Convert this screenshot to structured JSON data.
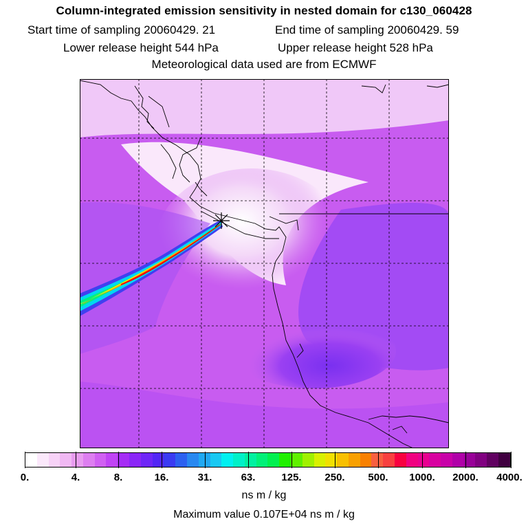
{
  "title": "Column-integrated emission sensitivity in nested domain for c130_060428",
  "start_sampling": "Start time of sampling 20060429.    21",
  "end_sampling": "End time of sampling 20060429.    59",
  "lower_release": "Lower release height  544 hPa",
  "upper_release": "Upper release height  528 hPa",
  "met_data": "Meteorological data used are from ECMWF",
  "units": "ns m / kg",
  "max_value": "Maximum value  0.107E+04 ns m / kg",
  "colorbar": {
    "tick_labels": [
      "0.",
      "4.",
      "8.",
      "16.",
      "31.",
      "63.",
      "125.",
      "250.",
      "500.",
      "1000.",
      "2000.",
      "4000."
    ],
    "colors": [
      "#ffffff",
      "#fbe8fb",
      "#f7d2f7",
      "#f0b8f3",
      "#e89cf0",
      "#dd7ef0",
      "#d060f2",
      "#c044f5",
      "#a52cf5",
      "#8a26f7",
      "#6e26f7",
      "#5226f5",
      "#3a3af2",
      "#2c60f0",
      "#2888f0",
      "#20a8f2",
      "#18c8f2",
      "#00f0f0",
      "#00f0c8",
      "#00f0a0",
      "#00f078",
      "#00f050",
      "#20f000",
      "#60f000",
      "#a0f000",
      "#d8f000",
      "#f0e000",
      "#f8c000",
      "#f8a000",
      "#f88000",
      "#f86040",
      "#f84040",
      "#f80040",
      "#f00080",
      "#e80090",
      "#d800a0",
      "#c800a8",
      "#b000a8",
      "#980098",
      "#800080",
      "#600060",
      "#400040"
    ]
  },
  "map": {
    "release_marker": "asterisk",
    "plume_colors": [
      "#3030f0",
      "#00d8f0",
      "#00f080",
      "#f0f000",
      "#f8a000",
      "#f80000",
      "#f86030"
    ]
  }
}
